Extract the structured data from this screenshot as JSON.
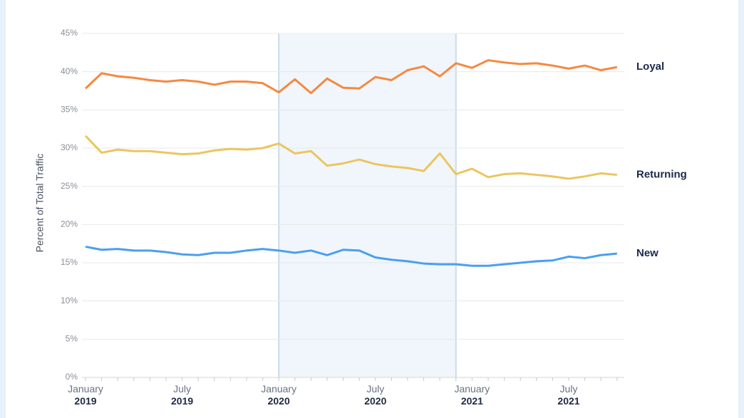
{
  "chart_data": {
    "type": "line",
    "y_label": "Percent of Total Traffic",
    "categories": [
      "January 2019",
      null,
      null,
      null,
      null,
      null,
      "July 2019",
      null,
      null,
      null,
      null,
      null,
      "January 2020",
      null,
      null,
      null,
      null,
      null,
      "July 2020",
      null,
      null,
      null,
      null,
      null,
      "January 2021",
      null,
      null,
      null,
      null,
      null,
      "July 2021",
      null,
      null,
      null
    ],
    "series": [
      {
        "name": "Loyal",
        "color": "#f5893f",
        "values": [
          37.8,
          39.8,
          39.4,
          39.2,
          38.9,
          38.7,
          38.9,
          38.7,
          38.3,
          38.7,
          38.7,
          38.5,
          37.3,
          39.0,
          37.2,
          39.1,
          37.9,
          37.8,
          39.3,
          38.9,
          40.2,
          40.7,
          39.4,
          41.1,
          40.5,
          41.5,
          41.2,
          41.0,
          41.1,
          40.8,
          40.4,
          40.8,
          40.2,
          40.6
        ]
      },
      {
        "name": "Returning",
        "color": "#ebc560",
        "values": [
          31.6,
          29.4,
          29.8,
          29.6,
          29.6,
          29.4,
          29.2,
          29.3,
          29.7,
          29.9,
          29.8,
          30.0,
          30.6,
          29.3,
          29.6,
          27.7,
          28.0,
          28.5,
          27.9,
          27.6,
          27.4,
          27.0,
          29.3,
          26.6,
          27.3,
          26.2,
          26.6,
          26.7,
          26.5,
          26.3,
          26.0,
          26.3,
          26.7,
          26.5
        ]
      },
      {
        "name": "New",
        "color": "#4a9ff0",
        "values": [
          17.1,
          16.7,
          16.8,
          16.6,
          16.6,
          16.4,
          16.1,
          16.0,
          16.3,
          16.3,
          16.6,
          16.8,
          16.6,
          16.3,
          16.6,
          16.0,
          16.7,
          16.6,
          15.7,
          15.4,
          15.2,
          14.9,
          14.8,
          14.8,
          14.6,
          14.6,
          14.8,
          15.0,
          15.2,
          15.3,
          15.8,
          15.6,
          16.0,
          16.2
        ]
      }
    ],
    "highlight": {
      "from": 12,
      "to": 23
    },
    "ylim": [
      0,
      45
    ],
    "yticks": [
      {
        "value": 0,
        "label": "0%"
      },
      {
        "value": 5,
        "label": "5%"
      },
      {
        "value": 10,
        "label": "10%"
      },
      {
        "value": 15,
        "label": "15%"
      },
      {
        "value": 20,
        "label": "20%"
      },
      {
        "value": 25,
        "label": "25%"
      },
      {
        "value": 30,
        "label": "30%"
      },
      {
        "value": 35,
        "label": "35%"
      },
      {
        "value": 40,
        "label": "40%"
      },
      {
        "value": 45,
        "label": "45%"
      }
    ],
    "grid": true
  }
}
